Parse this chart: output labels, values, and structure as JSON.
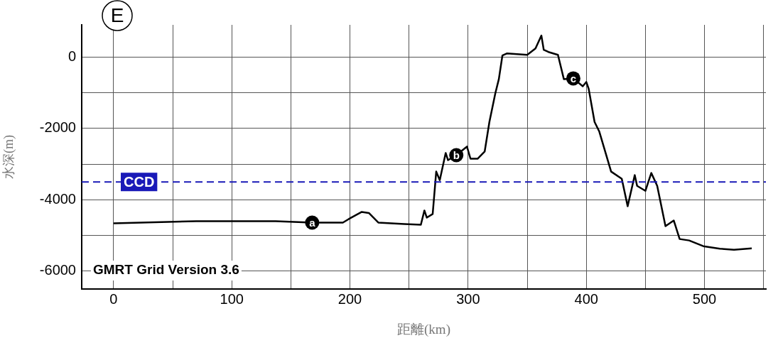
{
  "chart_data": {
    "type": "line",
    "title": "E",
    "xlabel": "距離(km)",
    "ylabel": "水深(m)",
    "xlim": [
      -27,
      552
    ],
    "ylim": [
      -6500,
      900
    ],
    "xticks": [
      0,
      {
        "value": 50,
        "label": null
      },
      100,
      {
        "value": 150,
        "label": null
      },
      200,
      {
        "value": 250,
        "label": null
      },
      300,
      {
        "value": 350,
        "label": null
      },
      400,
      {
        "value": 450,
        "label": null
      },
      500,
      {
        "value": 550,
        "label": null
      }
    ],
    "yticks": [
      -6000,
      {
        "value": -5000,
        "label": null
      },
      -4000,
      {
        "value": -3000,
        "label": null
      },
      -2000,
      {
        "value": -1000,
        "label": null
      },
      0
    ],
    "grid": true,
    "legend": false,
    "marker": "none",
    "line_style": "solid",
    "series": [
      {
        "color": "#000000",
        "x": [
          0,
          70,
          137,
          168,
          194,
          199,
          210,
          216,
          224,
          246,
          260,
          263,
          265,
          270,
          273,
          276,
          281,
          283,
          290,
          299,
          302,
          308,
          314,
          318,
          323,
          326,
          329,
          333,
          350,
          357,
          362,
          364,
          368,
          376,
          381,
          389,
          397,
          400,
          402,
          407,
          411,
          421,
          430,
          435,
          441,
          443,
          450,
          455,
          460,
          467,
          474,
          479,
          487,
          499,
          513,
          525,
          540
        ],
        "values": [
          -4660,
          -4600,
          -4600,
          -4640,
          -4640,
          -4540,
          -4340,
          -4370,
          -4640,
          -4680,
          -4700,
          -4300,
          -4500,
          -4400,
          -3210,
          -3450,
          -2690,
          -2890,
          -2750,
          -2510,
          -2850,
          -2850,
          -2650,
          -1820,
          -1020,
          -620,
          40,
          100,
          60,
          240,
          600,
          200,
          140,
          60,
          -620,
          -600,
          -820,
          -700,
          -890,
          -1820,
          -2090,
          -3210,
          -3410,
          -4180,
          -3310,
          -3610,
          -3750,
          -3250,
          -3610,
          -4740,
          -4580,
          -5100,
          -5140,
          -5300,
          -5370,
          -5400,
          -5360
        ]
      }
    ],
    "ref_lines": [
      {
        "axis": "y",
        "value": -3500,
        "label": "CCD",
        "color": "#1a1ab8",
        "line_style": "dashed"
      }
    ],
    "annotations": [
      {
        "text": "a",
        "x": 168,
        "y": -4640
      },
      {
        "text": "b",
        "x": 290,
        "y": -2750
      },
      {
        "text": "c",
        "x": 389,
        "y": -600
      },
      "GMRT Grid Version 3.6"
    ]
  }
}
